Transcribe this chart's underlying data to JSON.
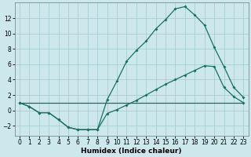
{
  "xlabel": "Humidex (Indice chaleur)",
  "background_color": "#cce8ec",
  "grid_color": "#a8ced4",
  "line_color": "#1a7060",
  "xlim": [
    -0.5,
    23.5
  ],
  "ylim": [
    -3.3,
    14.0
  ],
  "xticks": [
    0,
    1,
    2,
    3,
    4,
    5,
    6,
    7,
    8,
    9,
    10,
    11,
    12,
    13,
    14,
    15,
    16,
    17,
    18,
    19,
    20,
    21,
    22,
    23
  ],
  "yticks": [
    -2,
    0,
    2,
    4,
    6,
    8,
    10,
    12
  ],
  "line1_x": [
    0,
    1,
    2,
    3,
    4,
    5,
    6,
    7,
    8,
    9,
    10,
    11,
    12,
    13,
    14,
    15,
    16,
    17,
    18,
    19,
    20,
    21,
    22,
    23
  ],
  "line1_y": [
    1.0,
    0.5,
    -0.3,
    -0.3,
    -1.2,
    -2.2,
    -2.5,
    -2.5,
    -2.5,
    1.4,
    3.8,
    6.4,
    7.8,
    9.0,
    10.6,
    11.8,
    13.2,
    13.5,
    12.4,
    11.1,
    8.2,
    5.7,
    3.0,
    1.7
  ],
  "line2_x": [
    0,
    1,
    2,
    3,
    4,
    5,
    6,
    7,
    8,
    9,
    10,
    11,
    12,
    13,
    14,
    15,
    16,
    17,
    18,
    19,
    20,
    21,
    22,
    23
  ],
  "line2_y": [
    1.0,
    0.5,
    -0.3,
    -0.3,
    -1.2,
    -2.2,
    -2.5,
    -2.5,
    -2.5,
    -0.4,
    0.1,
    0.7,
    1.3,
    2.0,
    2.7,
    3.4,
    4.0,
    4.6,
    5.2,
    5.8,
    5.7,
    3.0,
    1.8,
    1.0
  ],
  "line3_x": [
    0,
    23
  ],
  "line3_y": [
    1.0,
    1.0
  ],
  "xlabel_fontsize": 6.5,
  "tick_fontsize": 5.5
}
